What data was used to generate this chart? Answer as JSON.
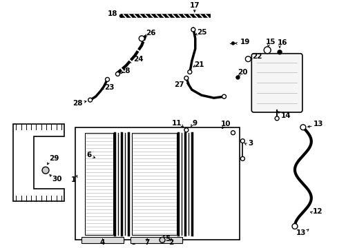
{
  "bg_color": "#ffffff",
  "fig_width": 4.89,
  "fig_height": 3.6,
  "dpi": 100,
  "black": "#000000",
  "gray": "#888888",
  "lgray": "#cccccc"
}
